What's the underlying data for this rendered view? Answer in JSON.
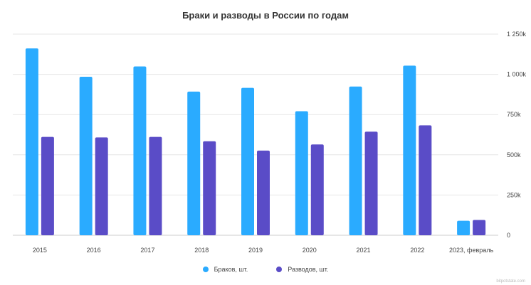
{
  "chart_data": {
    "type": "bar",
    "title": "Браки и разводы в России по годам",
    "categories": [
      "2015",
      "2016",
      "2017",
      "2018",
      "2019",
      "2020",
      "2021",
      "2022",
      "2023, февраль"
    ],
    "series": [
      {
        "name": "Браков, шт.",
        "color": "#2aabff",
        "values": [
          1161000,
          985000,
          1049000,
          893000,
          916000,
          771000,
          924000,
          1054000,
          90000
        ]
      },
      {
        "name": "Разводов, шт.",
        "color": "#5a4cc7",
        "values": [
          611000,
          608000,
          611000,
          584000,
          526000,
          564000,
          644000,
          683000,
          95000
        ]
      }
    ],
    "y_ticks": [
      "0",
      "250k",
      "500k",
      "750k",
      "1 000k",
      "1 250k"
    ],
    "ylim": [
      0,
      1250000
    ],
    "y_axis_side": "right",
    "grid": true,
    "legend_position": "bottom"
  },
  "watermark": "bitpotstate.com"
}
